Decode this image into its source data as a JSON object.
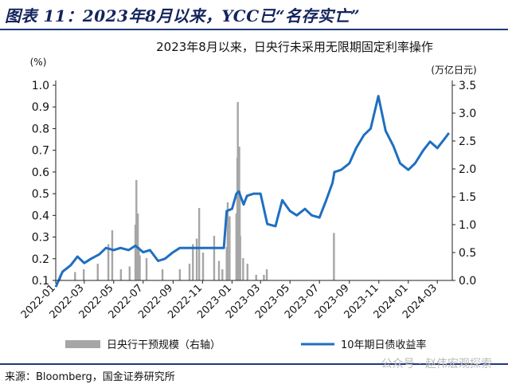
{
  "figure": {
    "title": "图表 11：2023年8月以来，YCC已“名存实亡”",
    "source": "来源：Bloomberg，国金证券研究所",
    "watermark": "公众号 · 赵伟宏观探索"
  },
  "colors": {
    "line": "#1f6fc0",
    "bars": "#a6a6a6",
    "rule": "#1f3a7a",
    "title": "#14245c"
  },
  "chart_data": {
    "type": "bar+line",
    "title": "2023年8月以来，日央行未采用无限期固定利率操作",
    "left_axis": {
      "unit": "(%)",
      "ylim": [
        0.1,
        1.0
      ],
      "ticks": [
        "0.1",
        "0.2",
        "0.3",
        "0.4",
        "0.5",
        "0.6",
        "0.7",
        "0.8",
        "0.9",
        "1.0"
      ]
    },
    "right_axis": {
      "unit": "(万亿日元)",
      "ylim": [
        0.0,
        3.5
      ],
      "ticks": [
        "0.0",
        "0.5",
        "1.0",
        "1.5",
        "2.0",
        "2.5",
        "3.0",
        "3.5"
      ]
    },
    "x_ticks": [
      "2022-01",
      "2022-03",
      "2022-05",
      "2022-07",
      "2022-09",
      "2022-11",
      "2023-01",
      "2023-03",
      "2023-05",
      "2023-07",
      "2023-09",
      "2023-11",
      "2024-01",
      "2024-03"
    ],
    "legend": {
      "placement": "bottom",
      "bars_label": "日央行干预规模（右轴）",
      "line_label": "10年期日债收益率"
    },
    "grid": false,
    "series": [
      {
        "name": "10年期日债收益率",
        "type": "line",
        "axis": "left",
        "points": [
          [
            "2022-01-01",
            0.07
          ],
          [
            "2022-01-15",
            0.14
          ],
          [
            "2022-02-01",
            0.17
          ],
          [
            "2022-02-15",
            0.21
          ],
          [
            "2022-03-01",
            0.18
          ],
          [
            "2022-03-15",
            0.2
          ],
          [
            "2022-04-01",
            0.22
          ],
          [
            "2022-04-15",
            0.25
          ],
          [
            "2022-05-01",
            0.24
          ],
          [
            "2022-05-15",
            0.25
          ],
          [
            "2022-06-01",
            0.24
          ],
          [
            "2022-06-15",
            0.26
          ],
          [
            "2022-07-01",
            0.23
          ],
          [
            "2022-07-15",
            0.24
          ],
          [
            "2022-08-01",
            0.19
          ],
          [
            "2022-08-15",
            0.2
          ],
          [
            "2022-09-01",
            0.23
          ],
          [
            "2022-09-15",
            0.25
          ],
          [
            "2022-10-01",
            0.25
          ],
          [
            "2022-10-15",
            0.25
          ],
          [
            "2022-11-01",
            0.25
          ],
          [
            "2022-11-15",
            0.25
          ],
          [
            "2022-12-01",
            0.25
          ],
          [
            "2022-12-15",
            0.25
          ],
          [
            "2022-12-21",
            0.42
          ],
          [
            "2023-01-01",
            0.43
          ],
          [
            "2023-01-10",
            0.5
          ],
          [
            "2023-01-15",
            0.51
          ],
          [
            "2023-01-25",
            0.45
          ],
          [
            "2023-02-01",
            0.49
          ],
          [
            "2023-02-15",
            0.5
          ],
          [
            "2023-03-01",
            0.5
          ],
          [
            "2023-03-15",
            0.36
          ],
          [
            "2023-04-01",
            0.35
          ],
          [
            "2023-04-15",
            0.47
          ],
          [
            "2023-05-01",
            0.42
          ],
          [
            "2023-05-15",
            0.4
          ],
          [
            "2023-06-01",
            0.43
          ],
          [
            "2023-06-15",
            0.4
          ],
          [
            "2023-07-01",
            0.39
          ],
          [
            "2023-07-15",
            0.47
          ],
          [
            "2023-07-28",
            0.55
          ],
          [
            "2023-08-01",
            0.6
          ],
          [
            "2023-08-15",
            0.61
          ],
          [
            "2023-09-01",
            0.64
          ],
          [
            "2023-09-15",
            0.71
          ],
          [
            "2023-10-01",
            0.77
          ],
          [
            "2023-10-15",
            0.8
          ],
          [
            "2023-10-31",
            0.95
          ],
          [
            "2023-11-15",
            0.79
          ],
          [
            "2023-12-01",
            0.72
          ],
          [
            "2023-12-15",
            0.64
          ],
          [
            "2024-01-01",
            0.61
          ],
          [
            "2024-01-15",
            0.64
          ],
          [
            "2024-02-01",
            0.7
          ],
          [
            "2024-02-15",
            0.74
          ],
          [
            "2024-03-01",
            0.71
          ],
          [
            "2024-03-15",
            0.75
          ],
          [
            "2024-03-25",
            0.78
          ]
        ]
      },
      {
        "name": "日央行干预规模（右轴）",
        "type": "bar",
        "axis": "right",
        "points": [
          [
            "2022-01-10",
            0.1
          ],
          [
            "2022-02-10",
            0.15
          ],
          [
            "2022-02-28",
            0.2
          ],
          [
            "2022-03-29",
            0.3
          ],
          [
            "2022-04-20",
            0.65
          ],
          [
            "2022-04-28",
            0.9
          ],
          [
            "2022-05-16",
            0.2
          ],
          [
            "2022-06-03",
            0.25
          ],
          [
            "2022-06-15",
            1.0
          ],
          [
            "2022-06-17",
            1.8
          ],
          [
            "2022-06-20",
            1.2
          ],
          [
            "2022-06-22",
            0.6
          ],
          [
            "2022-06-24",
            0.45
          ],
          [
            "2022-07-08",
            0.4
          ],
          [
            "2022-08-10",
            0.2
          ],
          [
            "2022-09-15",
            0.2
          ],
          [
            "2022-10-05",
            0.3
          ],
          [
            "2022-10-12",
            0.65
          ],
          [
            "2022-10-20",
            0.75
          ],
          [
            "2022-10-25",
            1.3
          ],
          [
            "2022-11-02",
            0.5
          ],
          [
            "2022-11-25",
            0.8
          ],
          [
            "2022-12-05",
            0.35
          ],
          [
            "2022-12-12",
            0.2
          ],
          [
            "2022-12-21",
            0.6
          ],
          [
            "2022-12-23",
            1.4
          ],
          [
            "2022-12-27",
            1.15
          ],
          [
            "2023-01-10",
            1.2
          ],
          [
            "2023-01-12",
            2.2
          ],
          [
            "2023-01-13",
            3.2
          ],
          [
            "2023-01-16",
            2.4
          ],
          [
            "2023-01-17",
            1.6
          ],
          [
            "2023-01-18",
            0.8
          ],
          [
            "2023-01-24",
            0.4
          ],
          [
            "2023-02-02",
            0.3
          ],
          [
            "2023-02-20",
            0.1
          ],
          [
            "2023-03-08",
            0.1
          ],
          [
            "2023-03-14",
            0.2
          ],
          [
            "2023-07-31",
            0.85
          ]
        ]
      }
    ]
  }
}
